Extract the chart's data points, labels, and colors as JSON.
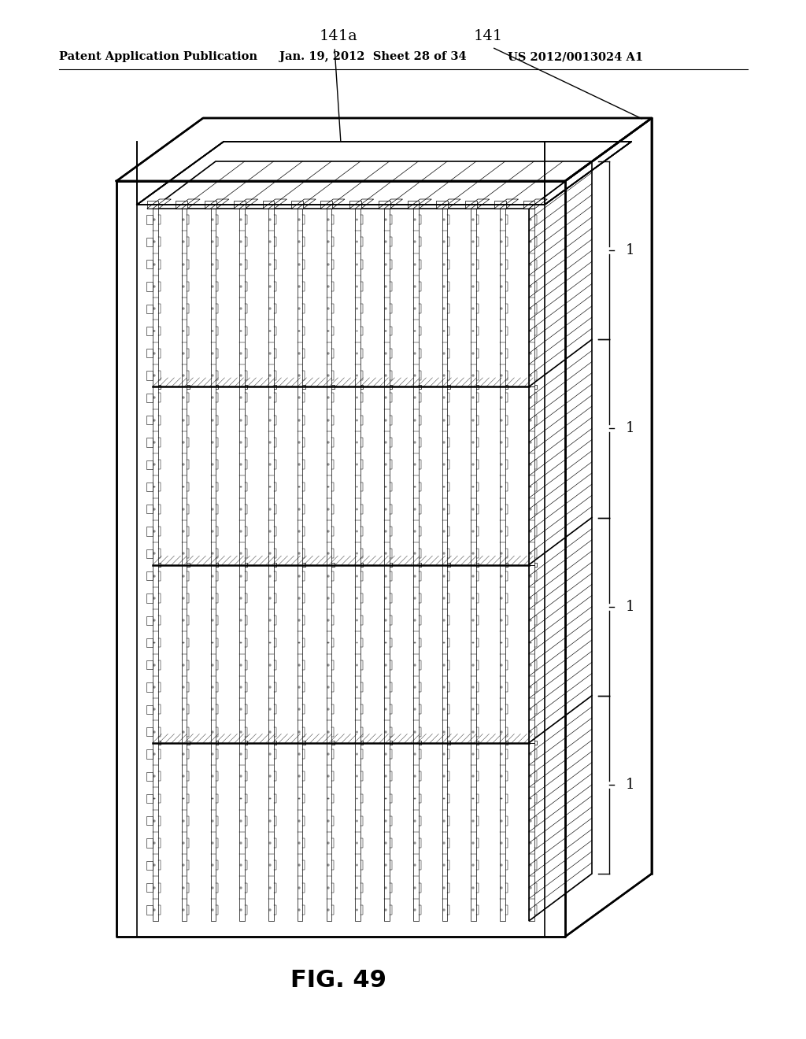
{
  "header_left": "Patent Application Publication",
  "header_mid": "Jan. 19, 2012  Sheet 28 of 34",
  "header_right": "US 2012/0013024 A1",
  "fig_label": "FIG. 49",
  "label_141a": "141a",
  "label_141": "141",
  "label_1": "1",
  "bg_color": "#ffffff",
  "line_color": "#000000",
  "n_groups": 4,
  "rows_per_group": 8,
  "n_fins": 14
}
